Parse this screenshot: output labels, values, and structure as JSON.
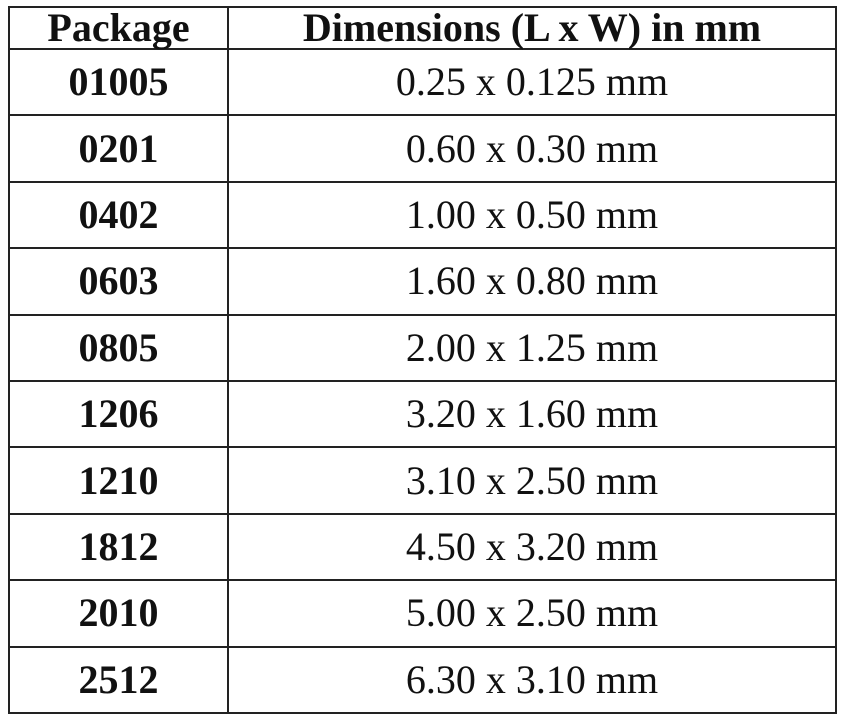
{
  "table": {
    "header": [
      "Package",
      "Dimensions (L x W) in mm"
    ],
    "rows": [
      [
        "01005",
        "0.25 x 0.125 mm"
      ],
      [
        "0201",
        "0.60 x 0.30 mm"
      ],
      [
        "0402",
        "1.00 x 0.50 mm"
      ],
      [
        "0603",
        "1.60 x 0.80 mm"
      ],
      [
        "0805",
        "2.00 x 1.25 mm"
      ],
      [
        "1206",
        "3.20 x 1.60 mm"
      ],
      [
        "1210",
        "3.10 x 2.50 mm"
      ],
      [
        "1812",
        "4.50 x 3.20 mm"
      ],
      [
        "2010",
        "5.00 x 2.50 mm"
      ],
      [
        "2512",
        "6.30 x 3.10 mm"
      ]
    ]
  }
}
